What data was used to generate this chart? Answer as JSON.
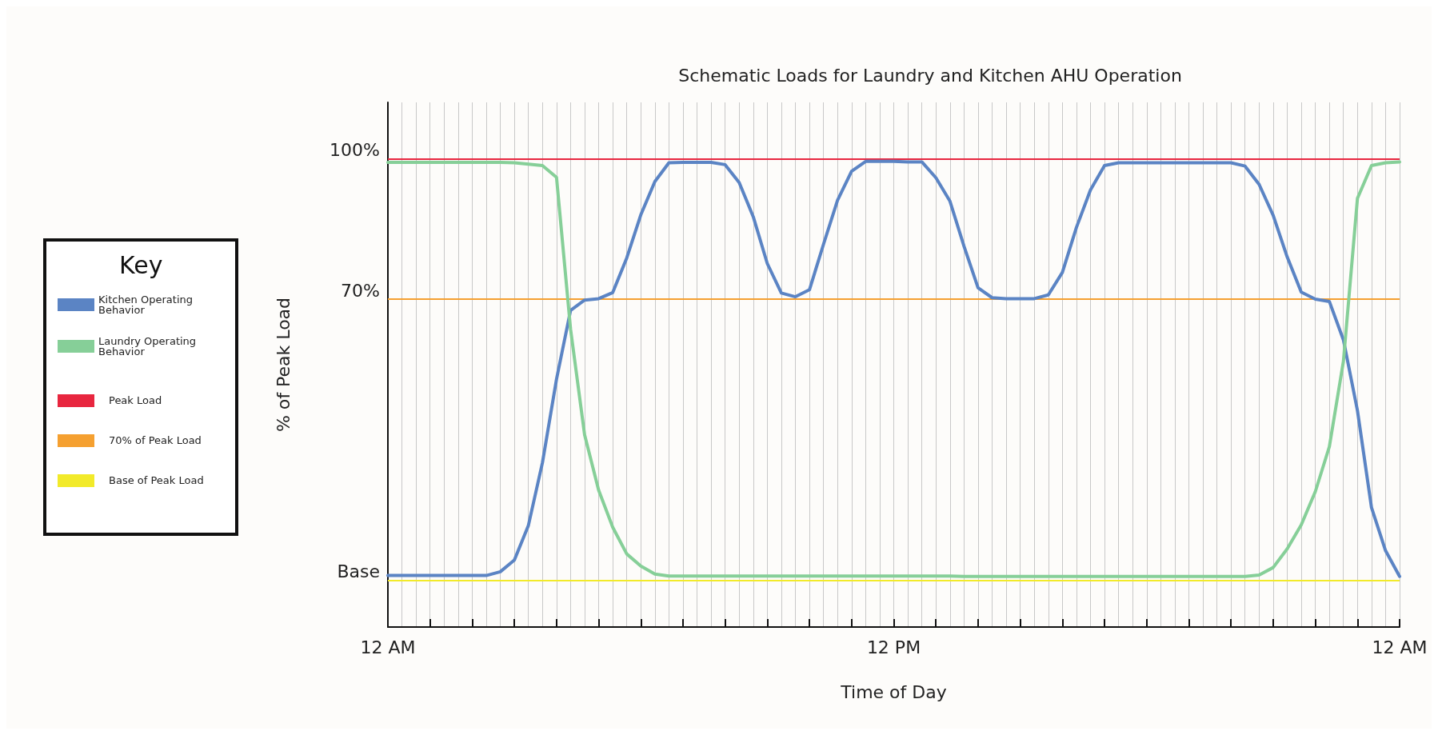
{
  "chart_data": {
    "type": "line",
    "title": "Schematic Loads for Laundry and Kitchen AHU Operation",
    "xlabel": "Time of Day",
    "ylabel": "% of Peak Load",
    "legend_title": "Key",
    "legend": "left",
    "categories": [
      "12 AM",
      null,
      null,
      null,
      null,
      null,
      null,
      null,
      null,
      null,
      null,
      null,
      null,
      null,
      null,
      null,
      null,
      null,
      null,
      null,
      null,
      null,
      null,
      null,
      null,
      null,
      null,
      null,
      null,
      null,
      null,
      null,
      null,
      null,
      null,
      null,
      "12 PM",
      null,
      null,
      null,
      null,
      null,
      null,
      null,
      null,
      null,
      null,
      null,
      null,
      null,
      null,
      null,
      null,
      null,
      null,
      null,
      null,
      null,
      null,
      null,
      null,
      null,
      null,
      null,
      null,
      null,
      null,
      null,
      null,
      null,
      null,
      null,
      "12 AM"
    ],
    "ylim": [
      0,
      112
    ],
    "yticks": [
      {
        "value": 10,
        "label": "Base"
      },
      {
        "value": 70,
        "label": "70%"
      },
      {
        "value": 100,
        "label": "100%"
      }
    ],
    "grid": true,
    "marker": "none",
    "line_style": "solid",
    "series": [
      {
        "name": "Kitchen Operating Behavior",
        "color": "#5b84c4",
        "values": [
          11,
          11,
          11,
          11,
          11,
          11,
          11,
          11,
          11.8,
          14.3,
          21.7,
          35.1,
          52.9,
          67.6,
          69.8,
          70.1,
          71.4,
          78.8,
          88,
          95.1,
          99.1,
          99.2,
          99.2,
          99.2,
          98.7,
          94.9,
          87.6,
          77.6,
          71.3,
          70.5,
          72,
          81.7,
          91.1,
          97.3,
          99.4,
          99.4,
          99.4,
          99.3,
          99.3,
          95.9,
          90.9,
          81.3,
          72.4,
          70.3,
          70.1,
          70.1,
          70.1,
          70.9,
          75.7,
          85.3,
          93.3,
          98.5,
          99.1,
          99.1,
          99.1,
          99.1,
          99.1,
          99.1,
          99.1,
          99.1,
          99.1,
          98.4,
          94.5,
          87.9,
          79,
          71.5,
          70,
          69.5,
          61.3,
          46.2,
          25.5,
          16.3,
          10.8
        ]
      },
      {
        "name": "Laundry Operating Behavior",
        "color": "#86cf98",
        "values": [
          99.2,
          99.2,
          99.2,
          99.2,
          99.2,
          99.2,
          99.2,
          99.2,
          99.2,
          99.1,
          98.8,
          98.5,
          96,
          63.6,
          41,
          29.2,
          21.3,
          15.6,
          13,
          11.3,
          10.9,
          10.9,
          10.9,
          10.9,
          10.9,
          10.9,
          10.9,
          10.9,
          10.9,
          10.9,
          10.9,
          10.9,
          10.9,
          10.9,
          10.9,
          10.9,
          10.9,
          10.9,
          10.9,
          10.9,
          10.9,
          10.8,
          10.8,
          10.8,
          10.8,
          10.8,
          10.8,
          10.8,
          10.8,
          10.8,
          10.8,
          10.8,
          10.8,
          10.8,
          10.8,
          10.8,
          10.8,
          10.8,
          10.8,
          10.8,
          10.8,
          10.8,
          11.1,
          12.7,
          16.7,
          21.8,
          28.9,
          38.5,
          56.7,
          91.5,
          98.5,
          99.1,
          99.3
        ]
      }
    ],
    "ref_lines": [
      {
        "axis": "y",
        "value": 100,
        "label": "Peak Load",
        "color": "#e8263f"
      },
      {
        "axis": "y",
        "value": 70,
        "label": "70% of Peak Load",
        "color": "#f5a030"
      },
      {
        "axis": "y",
        "value": 10,
        "label": "Base of Peak Load",
        "color": "#f2ea2a"
      }
    ]
  }
}
